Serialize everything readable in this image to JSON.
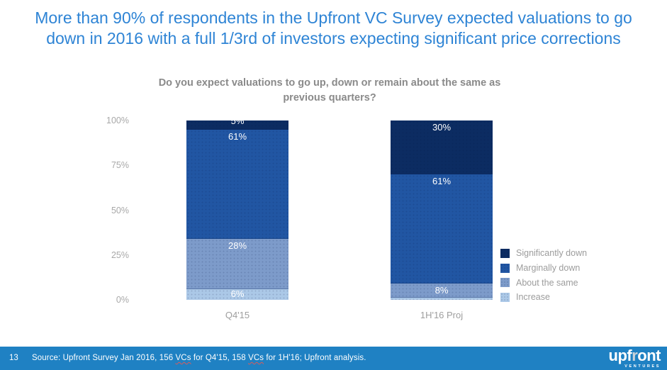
{
  "page": {
    "title_lines": [
      "More than 90% of respondents in the Upfront VC Survey expected valuations to go",
      "down in 2016 with a full 1/3rd of investors expecting significant price corrections"
    ],
    "page_number": "13"
  },
  "colors": {
    "title_blue": "#2e84d5",
    "footer_bar": "#1f81c3",
    "bar_label": "#ffffff",
    "axis_text": "#a8a8a8",
    "legend_text": "#9c9c9c"
  },
  "chart_data": {
    "type": "bar",
    "stacked": true,
    "percent": true,
    "title_lines": [
      "Do you expect valuations to go up, down or remain about the same as",
      "previous quarters?"
    ],
    "categories": [
      "Q4'15",
      "1H'16 Proj"
    ],
    "series": [
      {
        "name": "Significantly down",
        "color": "#0c2c62",
        "values": [
          5,
          30
        ]
      },
      {
        "name": "Marginally down",
        "color": "#2156a3",
        "values": [
          61,
          61
        ]
      },
      {
        "name": "About the same",
        "color": "#7d9bca",
        "values": [
          28,
          8
        ]
      },
      {
        "name": "Increase",
        "color": "#abc8e7",
        "values": [
          6,
          1
        ]
      }
    ],
    "y_ticks": [
      "100%",
      "75%",
      "50%",
      "25%",
      "0%"
    ],
    "ylim": [
      0,
      100
    ],
    "grid": false,
    "legend_position": "right",
    "bar_label_format": "{value}%"
  },
  "footer": {
    "source_segments": [
      {
        "text": "Source: Upfront Survey Jan 2016, 156 ",
        "misspelled": false
      },
      {
        "text": "VCs",
        "misspelled": true
      },
      {
        "text": " for Q4'15, 158 ",
        "misspelled": false
      },
      {
        "text": "VCs",
        "misspelled": true
      },
      {
        "text": " for 1H'16; Upfront analysis.",
        "misspelled": false
      }
    ]
  },
  "logo": {
    "brand_pre": "upf",
    "brand_r": "r",
    "brand_post": "ont",
    "sub": "VENTURES"
  }
}
